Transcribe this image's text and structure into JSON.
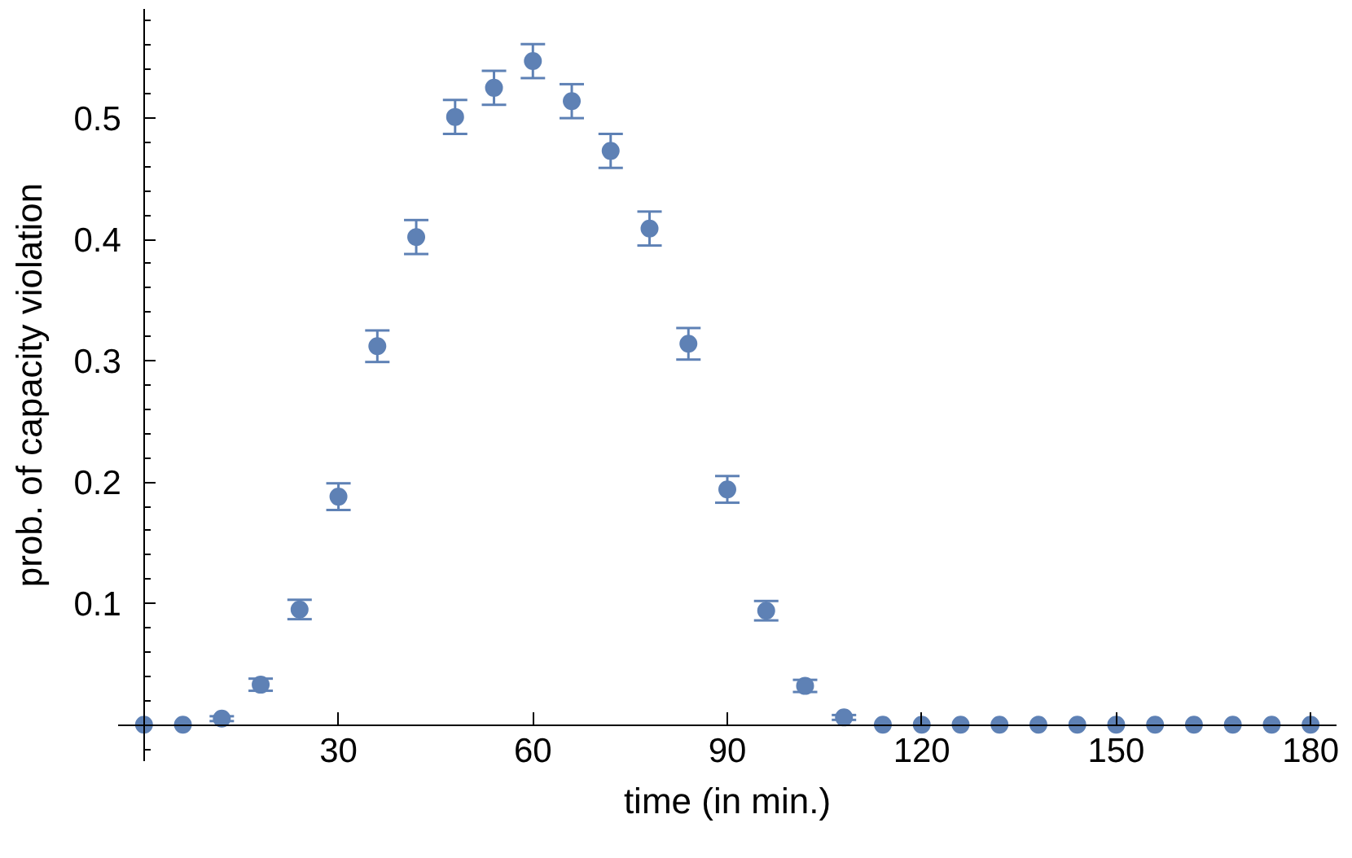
{
  "chart_data": {
    "type": "scatter",
    "xlabel": "time (in min.)",
    "ylabel": "prob. of capacity violation",
    "x": [
      0,
      6,
      12,
      18,
      24,
      30,
      36,
      42,
      48,
      54,
      60,
      66,
      72,
      78,
      84,
      90,
      96,
      102,
      108,
      114,
      120,
      126,
      132,
      138,
      144,
      150,
      156,
      162,
      168,
      174,
      180
    ],
    "series": [
      {
        "color": "#5e81b5",
        "values": [
          0,
          0,
          0.005,
          0.033,
          0.095,
          0.188,
          0.312,
          0.402,
          0.501,
          0.525,
          0.547,
          0.514,
          0.473,
          0.409,
          0.314,
          0.194,
          0.094,
          0.032,
          0.006,
          0,
          0,
          0,
          0,
          0,
          0,
          0,
          0,
          0,
          0,
          0,
          0
        ],
        "errors": [
          null,
          null,
          0.002,
          0.005,
          0.008,
          0.011,
          0.013,
          0.014,
          0.014,
          0.014,
          0.014,
          0.014,
          0.014,
          0.014,
          0.013,
          0.011,
          0.008,
          0.005,
          0.002,
          null,
          null,
          null,
          null,
          null,
          null,
          null,
          null,
          null,
          null,
          null,
          null
        ]
      }
    ],
    "xlim": [
      -4,
      184
    ],
    "ylim": [
      -0.03,
      0.59
    ],
    "xticks": [
      30,
      60,
      90,
      120,
      150,
      180
    ],
    "yticks": [
      {
        "value": -0.02,
        "label": null
      },
      {
        "value": 0.02,
        "label": null
      },
      {
        "value": 0.04,
        "label": null
      },
      {
        "value": 0.06,
        "label": null
      },
      {
        "value": 0.08,
        "label": null
      },
      0.1,
      {
        "value": 0.12,
        "label": null
      },
      {
        "value": 0.14,
        "label": null
      },
      {
        "value": 0.16,
        "label": null
      },
      {
        "value": 0.18,
        "label": null
      },
      0.2,
      {
        "value": 0.22,
        "label": null
      },
      {
        "value": 0.24,
        "label": null
      },
      {
        "value": 0.26,
        "label": null
      },
      {
        "value": 0.28,
        "label": null
      },
      0.3,
      {
        "value": 0.32,
        "label": null
      },
      {
        "value": 0.34,
        "label": null
      },
      {
        "value": 0.36,
        "label": null
      },
      {
        "value": 0.38,
        "label": null
      },
      0.4,
      {
        "value": 0.42,
        "label": null
      },
      {
        "value": 0.44,
        "label": null
      },
      {
        "value": 0.46,
        "label": null
      },
      {
        "value": 0.48,
        "label": null
      },
      0.5,
      {
        "value": 0.52,
        "label": null
      },
      {
        "value": 0.54,
        "label": null
      },
      {
        "value": 0.56,
        "label": null
      },
      {
        "value": 0.58,
        "label": null
      }
    ],
    "marker": "circle",
    "grid": false
  }
}
